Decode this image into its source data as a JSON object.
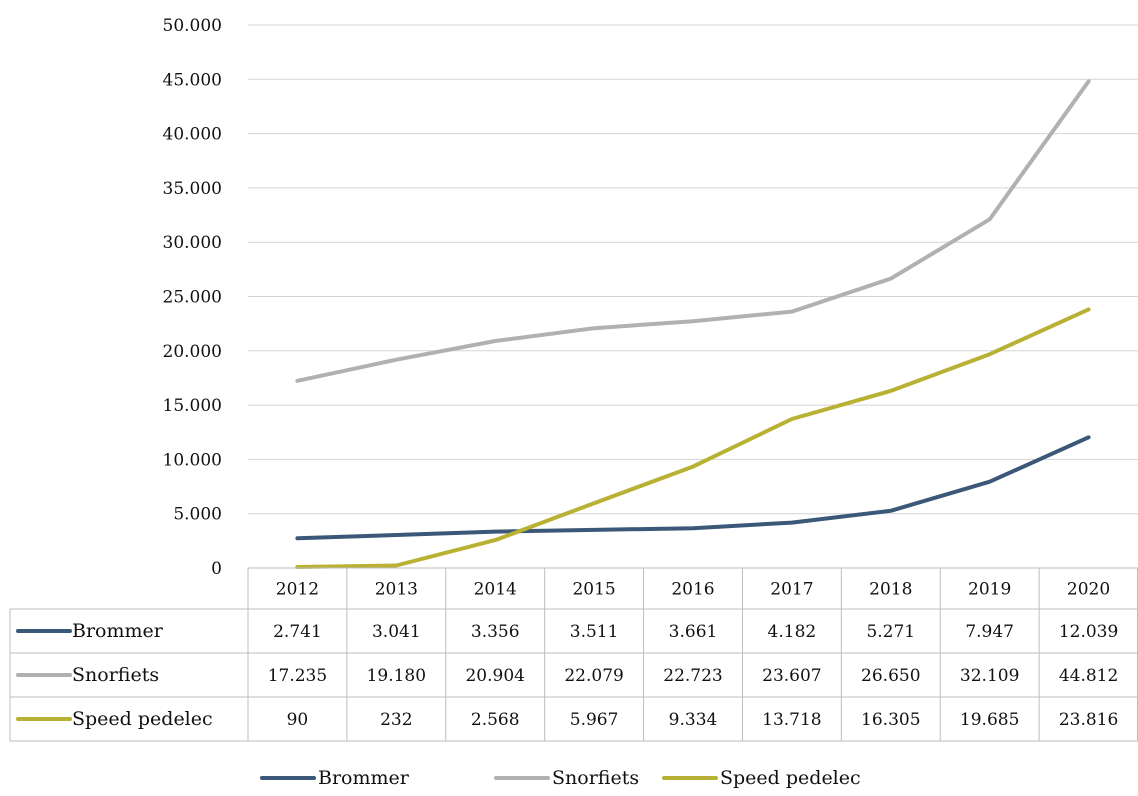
{
  "chart_data": {
    "type": "line",
    "title": "",
    "xlabel": "",
    "ylabel": "",
    "categories": [
      "2012",
      "2013",
      "2014",
      "2015",
      "2016",
      "2017",
      "2018",
      "2019",
      "2020"
    ],
    "ylim": [
      0,
      50000
    ],
    "yticks": [
      0,
      5000,
      10000,
      15000,
      20000,
      25000,
      30000,
      35000,
      40000,
      45000,
      50000
    ],
    "ytick_labels": [
      "0",
      "5.000",
      "10.000",
      "15.000",
      "20.000",
      "25.000",
      "30.000",
      "35.000",
      "40.000",
      "45.000",
      "50.000"
    ],
    "grid": true,
    "legend_position": "bottom",
    "data_table": true,
    "series": [
      {
        "name": "Brommer",
        "color": "#3b5878",
        "values": [
          2741,
          3041,
          3356,
          3511,
          3661,
          4182,
          5271,
          7947,
          12039
        ],
        "labels": [
          "2.741",
          "3.041",
          "3.356",
          "3.511",
          "3.661",
          "4.182",
          "5.271",
          "7.947",
          "12.039"
        ]
      },
      {
        "name": "Snorfiets",
        "color": "#b1b1b1",
        "values": [
          17235,
          19180,
          20904,
          22079,
          22723,
          23607,
          26650,
          32109,
          44812
        ],
        "labels": [
          "17.235",
          "19.180",
          "20.904",
          "22.079",
          "22.723",
          "23.607",
          "26.650",
          "32.109",
          "44.812"
        ]
      },
      {
        "name": "Speed pedelec",
        "color": "#b8b133",
        "values": [
          90,
          232,
          2568,
          5967,
          9334,
          13718,
          16305,
          19685,
          23816
        ],
        "labels": [
          "90",
          "232",
          "2.568",
          "5.967",
          "9.334",
          "13.718",
          "16.305",
          "19.685",
          "23.816"
        ]
      }
    ]
  }
}
